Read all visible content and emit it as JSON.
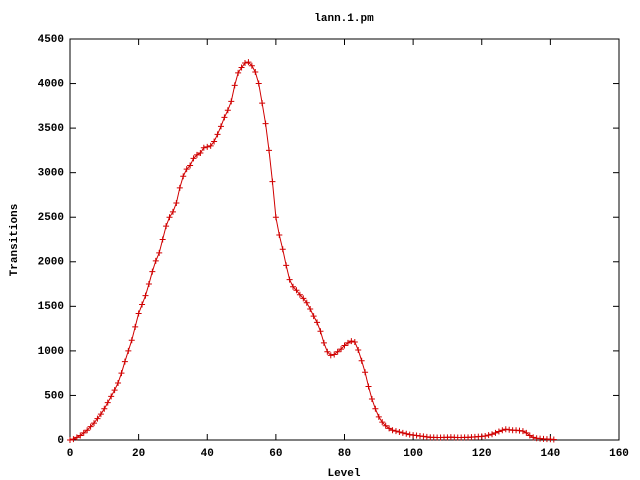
{
  "chart_data": {
    "type": "line",
    "title": "lann.1.pm",
    "x_label": "Level",
    "y_label": "Transitions",
    "x": [
      0,
      1,
      2,
      3,
      4,
      5,
      6,
      7,
      8,
      9,
      10,
      11,
      12,
      13,
      14,
      15,
      16,
      17,
      18,
      19,
      20,
      21,
      22,
      23,
      24,
      25,
      26,
      27,
      28,
      29,
      30,
      31,
      32,
      33,
      34,
      35,
      36,
      37,
      38,
      39,
      40,
      41,
      42,
      43,
      44,
      45,
      46,
      47,
      48,
      49,
      50,
      51,
      52,
      53,
      54,
      55,
      56,
      57,
      58,
      59,
      60,
      61,
      62,
      63,
      64,
      65,
      66,
      67,
      68,
      69,
      70,
      71,
      72,
      73,
      74,
      75,
      76,
      77,
      78,
      79,
      80,
      81,
      82,
      83,
      84,
      85,
      86,
      87,
      88,
      89,
      90,
      91,
      92,
      93,
      94,
      95,
      96,
      97,
      98,
      99,
      100,
      101,
      102,
      103,
      104,
      105,
      106,
      107,
      108,
      109,
      110,
      111,
      112,
      113,
      114,
      115,
      116,
      117,
      118,
      119,
      120,
      121,
      122,
      123,
      124,
      125,
      126,
      127,
      128,
      129,
      130,
      131,
      132,
      133,
      134,
      135,
      136,
      137,
      138,
      139,
      140,
      141
    ],
    "series": [
      {
        "color": "#d00000",
        "marker": "+",
        "values": [
          0,
          10,
          30,
          50,
          80,
          110,
          150,
          190,
          240,
          290,
          350,
          420,
          490,
          560,
          640,
          750,
          880,
          1000,
          1120,
          1270,
          1420,
          1520,
          1620,
          1750,
          1890,
          2010,
          2100,
          2250,
          2400,
          2500,
          2560,
          2660,
          2830,
          2960,
          3040,
          3080,
          3160,
          3200,
          3220,
          3280,
          3290,
          3300,
          3350,
          3430,
          3520,
          3620,
          3700,
          3800,
          3980,
          4120,
          4180,
          4230,
          4240,
          4200,
          4130,
          4000,
          3780,
          3550,
          3250,
          2900,
          2500,
          2300,
          2140,
          1960,
          1800,
          1720,
          1680,
          1630,
          1590,
          1540,
          1470,
          1390,
          1320,
          1220,
          1090,
          990,
          950,
          960,
          990,
          1020,
          1060,
          1090,
          1110,
          1100,
          1010,
          890,
          760,
          600,
          460,
          350,
          260,
          200,
          160,
          130,
          110,
          100,
          90,
          80,
          70,
          60,
          55,
          50,
          45,
          40,
          35,
          30,
          30,
          28,
          28,
          30,
          30,
          32,
          30,
          28,
          28,
          30,
          30,
          32,
          35,
          38,
          40,
          45,
          55,
          65,
          80,
          95,
          110,
          120,
          115,
          110,
          110,
          105,
          100,
          80,
          50,
          30,
          20,
          15,
          12,
          10,
          8,
          5
        ]
      }
    ],
    "xlim": [
      0,
      160
    ],
    "xticks": [
      0,
      20,
      40,
      60,
      80,
      100,
      120,
      140,
      160
    ],
    "ylim": [
      0,
      4500
    ],
    "yticks": [
      0,
      500,
      1000,
      1500,
      2000,
      2500,
      3000,
      3500,
      4000,
      4500
    ],
    "grid": false
  }
}
